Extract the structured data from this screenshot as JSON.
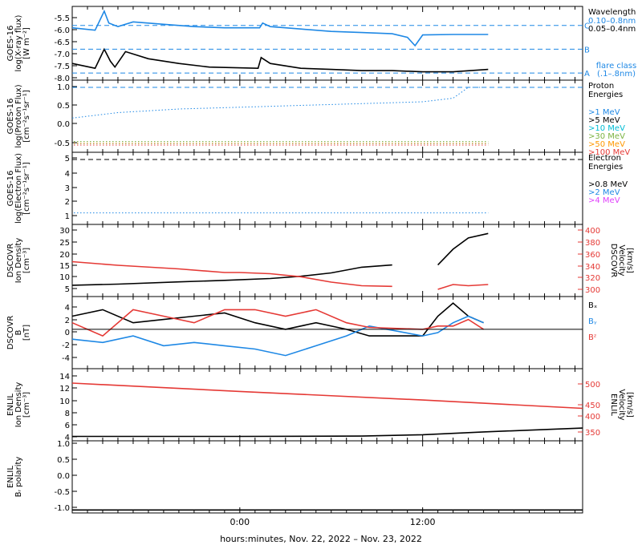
{
  "title": "",
  "xlabel": "hours:minutes, Nov. 22, 2022 – Nov. 23, 2022",
  "x_ticks": [
    "0:00",
    "12:00"
  ],
  "colors": {
    "black": "#000000",
    "blue": "#1e88e5",
    "cyan": "#00bcd4",
    "green": "#7cb342",
    "orange": "#ff9800",
    "red": "#e53935",
    "magenta": "#e040fb"
  },
  "chart_data": [
    {
      "id": "xray",
      "type": "line",
      "ylabel": [
        "GOES-16",
        "log(X-ray flux)",
        "[W m⁻²]"
      ],
      "ylim": [
        -8.3,
        -5.2
      ],
      "y_ticks": [
        "-5.5",
        "-6.0",
        "-6.5",
        "-7.0",
        "-7.5",
        "-8.0"
      ],
      "legend_title": "Wavelength",
      "flare_lines": [
        {
          "level": -6,
          "label": "C"
        },
        {
          "level": -7,
          "label": "B"
        },
        {
          "level": -8,
          "label": "A"
        }
      ],
      "flare_note": [
        "flare class",
        "(.1–.8nm)"
      ],
      "series": [
        {
          "name": "0.10–0.8nm",
          "color": "blue",
          "x": [
            -11,
            -9.5,
            -8.9,
            -8.6,
            -8,
            -7,
            -5,
            -3,
            -1,
            1.3,
            1.5,
            2,
            4,
            6,
            8,
            10,
            11,
            11.5,
            12,
            14,
            16.3
          ],
          "y": [
            -6.1,
            -6.2,
            -5.4,
            -5.9,
            -6.05,
            -5.85,
            -5.95,
            -6.05,
            -6.1,
            -6.1,
            -5.9,
            -6.05,
            -6.15,
            -6.25,
            -6.3,
            -6.35,
            -6.5,
            -6.85,
            -6.4,
            -6.38,
            -6.38
          ]
        },
        {
          "name": "0.05–0.4nm",
          "color": "black",
          "x": [
            -11,
            -9.5,
            -8.9,
            -8.5,
            -8.2,
            -7.5,
            -6,
            -4,
            -2,
            1.2,
            1.4,
            2,
            4,
            6,
            8,
            10,
            12,
            14,
            16.3
          ],
          "y": [
            -7.6,
            -7.8,
            -7.0,
            -7.5,
            -7.75,
            -7.1,
            -7.4,
            -7.6,
            -7.75,
            -7.8,
            -7.35,
            -7.6,
            -7.8,
            -7.85,
            -7.9,
            -7.9,
            -7.95,
            -7.95,
            -7.85
          ]
        }
      ]
    },
    {
      "id": "proton",
      "type": "scatter",
      "ylabel": [
        "GOES-16",
        "log(Proton Flux)",
        "[cm⁻²s⁻¹sr⁻¹]"
      ],
      "ylim": [
        -0.8,
        1.2
      ],
      "y_ticks": [
        "1.0",
        "0.5",
        "0.0",
        "-0.5"
      ],
      "legend_title": [
        "Proton",
        "Energies"
      ],
      "series": [
        {
          "name": ">1 MeV",
          "color": "blue",
          "x": [
            -11,
            -8,
            -4,
            0,
            4,
            8,
            12,
            14,
            15,
            16.3
          ],
          "y": [
            0.15,
            0.3,
            0.4,
            0.45,
            0.5,
            0.55,
            0.6,
            0.7,
            1.0,
            1.0
          ]
        },
        {
          "name": ">5 MeV",
          "color": "black",
          "level": -0.55
        },
        {
          "name": ">10 MeV",
          "color": "cyan",
          "level": -0.55
        },
        {
          "name": ">30 MeV",
          "color": "green",
          "level": -0.5
        },
        {
          "name": ">50 MeV",
          "color": "orange",
          "level": -0.55
        },
        {
          "name": ">100 MeV",
          "color": "red",
          "level": -0.6
        }
      ]
    },
    {
      "id": "electron",
      "type": "scatter",
      "ylabel": [
        "GOES-16",
        "log(Electron Flux)",
        "[cm⁻²s⁻¹sr⁻¹]"
      ],
      "ylim": [
        0.5,
        5.5
      ],
      "y_ticks": [
        "5",
        "4",
        "3",
        "2",
        "1"
      ],
      "legend_title": [
        "Electron",
        "Energies"
      ],
      "threshold": 5,
      "series": [
        {
          "name": ">0.8 MeV",
          "color": "black"
        },
        {
          "name": ">2 MeV",
          "color": "blue",
          "level": 1.3
        },
        {
          "name": ">4 MeV",
          "color": "magenta"
        }
      ]
    },
    {
      "id": "dscovr_plasma",
      "type": "line",
      "ylabel": [
        "DSCOVR",
        "Ion Density",
        "[cm⁻³]"
      ],
      "ylim": [
        0,
        32
      ],
      "y_ticks": [
        "30",
        "25",
        "20",
        "15",
        "10",
        "5"
      ],
      "ylabel_right": [
        "DSCOVR",
        "Velocity",
        "[km/s]"
      ],
      "ylim_right": [
        290,
        410
      ],
      "y_ticks_right": [
        "400",
        "380",
        "360",
        "340",
        "320",
        "300"
      ],
      "series": [
        {
          "name": "Ion Density",
          "color": "black",
          "x": [
            -11,
            -8,
            -4,
            -1,
            2,
            4,
            6,
            8,
            10,
            12,
            13,
            14,
            15,
            16.3
          ],
          "y": [
            5,
            5.5,
            6.5,
            7.2,
            8,
            9,
            10.5,
            13,
            14,
            null,
            14,
            21,
            26,
            28
          ]
        },
        {
          "name": "Velocity",
          "color": "red",
          "axis": "right",
          "x": [
            -11,
            -8,
            -4,
            -1,
            0,
            2,
            4,
            6,
            8,
            10,
            12,
            13,
            14,
            15,
            16.3
          ],
          "y": [
            348,
            342,
            336,
            330,
            330,
            328,
            323,
            314,
            308,
            307,
            null,
            302,
            310,
            308,
            310
          ]
        }
      ]
    },
    {
      "id": "dscovr_mag",
      "type": "line",
      "ylabel": [
        "DSCOVR",
        "B",
        "[nT]"
      ],
      "ylim": [
        -6,
        5
      ],
      "y_ticks": [
        "4",
        "2",
        "0",
        "-2",
        "-4"
      ],
      "series": [
        {
          "name": "Bₓ",
          "color": "black",
          "x": [
            -11,
            -9,
            -7,
            -5,
            -3,
            -1,
            1,
            3,
            5,
            7,
            8.5,
            12,
            13,
            14,
            15,
            16
          ],
          "y": [
            2,
            3,
            1,
            1.5,
            2,
            2.5,
            1,
            0,
            1,
            0,
            -1,
            -1,
            2,
            4,
            2,
            1
          ]
        },
        {
          "name": "Bᵧ",
          "color": "blue",
          "x": [
            -11,
            -9,
            -7,
            -5,
            -3,
            -1,
            1,
            3,
            5,
            7,
            8.5,
            12,
            13,
            14,
            15,
            16
          ],
          "y": [
            -1.5,
            -2,
            -1,
            -2.5,
            -2,
            -2.5,
            -3,
            -4,
            -2.5,
            -1,
            0.5,
            -1,
            -0.5,
            1,
            2,
            1
          ]
        },
        {
          "name": "Bᶻ",
          "color": "red",
          "x": [
            -11,
            -9,
            -7,
            -5,
            -3,
            -1,
            1,
            3,
            5,
            7,
            8.5,
            12,
            13,
            14,
            15,
            16
          ],
          "y": [
            1,
            -1,
            3,
            2,
            1,
            3,
            3,
            2,
            3,
            1,
            0.3,
            0,
            0.5,
            0.5,
            1.5,
            0
          ]
        }
      ]
    },
    {
      "id": "enlil_plasma",
      "type": "line",
      "ylabel": [
        "ENLIL",
        "Ion Density",
        "[cm⁻³]"
      ],
      "ylim": [
        3,
        16
      ],
      "y_ticks": [
        "14",
        "12",
        "10",
        "8",
        "6",
        "4"
      ],
      "ylabel_right": [
        "ENLIL",
        "Velocity",
        "[km/s]"
      ],
      "ylim_right": [
        330,
        530
      ],
      "y_ticks_right": [
        "500",
        "450",
        "400",
        "350"
      ],
      "series": [
        {
          "name": "Ion Density",
          "color": "black",
          "x": [
            -11,
            0,
            8,
            12,
            16,
            22.5
          ],
          "y": [
            3.8,
            3.8,
            3.85,
            4.1,
            4.6,
            5.3
          ]
        },
        {
          "name": "Velocity",
          "color": "red",
          "axis": "right",
          "x": [
            -11,
            0,
            12,
            22.5
          ],
          "y": [
            490,
            467,
            443,
            420
          ]
        }
      ]
    },
    {
      "id": "enlil_polarity",
      "type": "line",
      "ylabel": [
        "ENLIL",
        "Bᵣ polarity"
      ],
      "ylim": [
        -1.1,
        1.3
      ],
      "y_ticks": [
        "1.0",
        "0.5",
        "0.0",
        "-0.5",
        "-1.0"
      ],
      "series": [
        {
          "name": "Bᵣ polarity",
          "color": "black",
          "x": [
            -11,
            22.5
          ],
          "y": [
            -1,
            -1
          ]
        }
      ]
    }
  ]
}
